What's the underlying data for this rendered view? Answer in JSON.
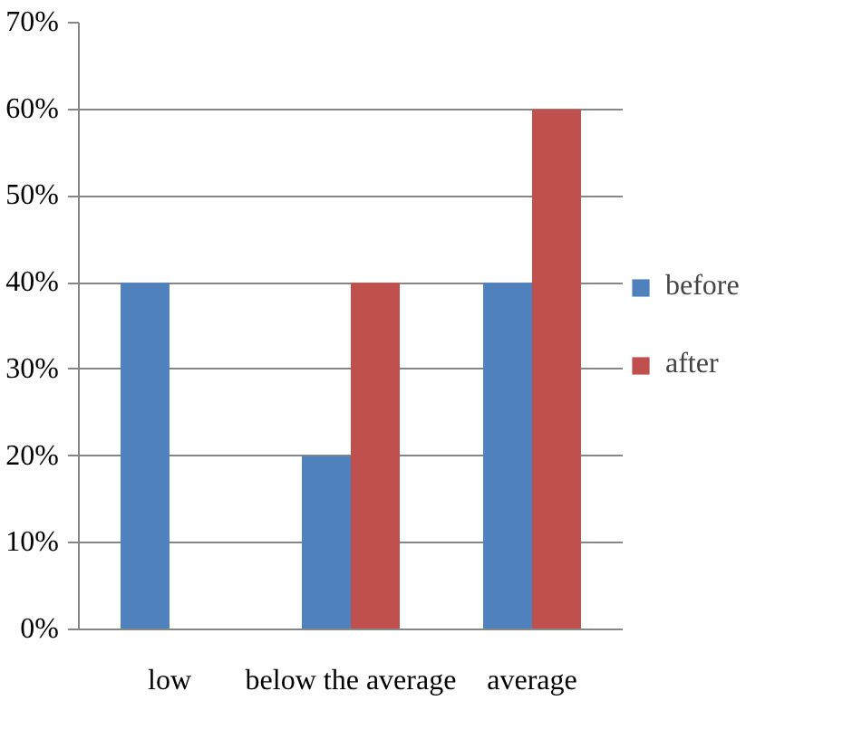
{
  "chart_data": {
    "type": "bar",
    "categories": [
      "low",
      "below the average",
      "average"
    ],
    "series": [
      {
        "name": "before",
        "color": "#4f81bd",
        "values": [
          40,
          20,
          40
        ]
      },
      {
        "name": "after",
        "color": "#c0504d",
        "values": [
          null,
          40,
          60
        ]
      }
    ],
    "ylim": [
      0,
      70
    ],
    "yticks": [
      {
        "value": 0,
        "label": "0%"
      },
      {
        "value": 10,
        "label": "10%"
      },
      {
        "value": 20,
        "label": "20%"
      },
      {
        "value": 30,
        "label": "30%"
      },
      {
        "value": 40,
        "label": "40%"
      },
      {
        "value": 50,
        "label": "50%"
      },
      {
        "value": 60,
        "label": "60%"
      },
      {
        "value": 70,
        "label": "70%"
      }
    ],
    "grid": "y",
    "legend": "right"
  }
}
